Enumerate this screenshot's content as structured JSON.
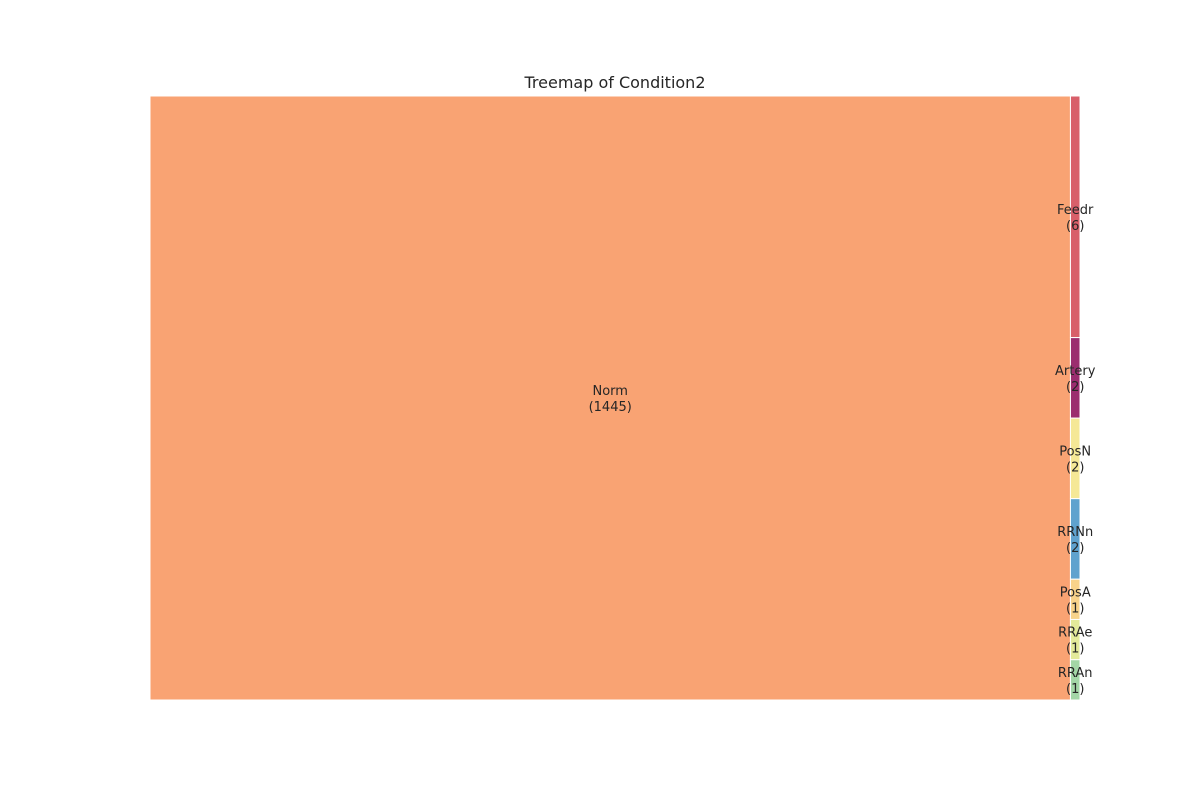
{
  "chart_data": {
    "type": "treemap",
    "title": "Treemap of Condition2",
    "items": [
      {
        "label": "Norm",
        "value": 1445,
        "color": "#f9a373"
      },
      {
        "label": "Feedr",
        "value": 6,
        "color": "#d85f6a"
      },
      {
        "label": "Artery",
        "value": 2,
        "color": "#9b2d6f"
      },
      {
        "label": "PosA",
        "value": 1,
        "color": "#f8d38a"
      },
      {
        "label": "PosN",
        "value": 2,
        "color": "#f5e896"
      },
      {
        "label": "RRAe",
        "value": 1,
        "color": "#e3ea9a"
      },
      {
        "label": "RRAn",
        "value": 1,
        "color": "#a3d6a6"
      },
      {
        "label": "RRNn",
        "value": 2,
        "color": "#5fa2ce"
      }
    ]
  }
}
